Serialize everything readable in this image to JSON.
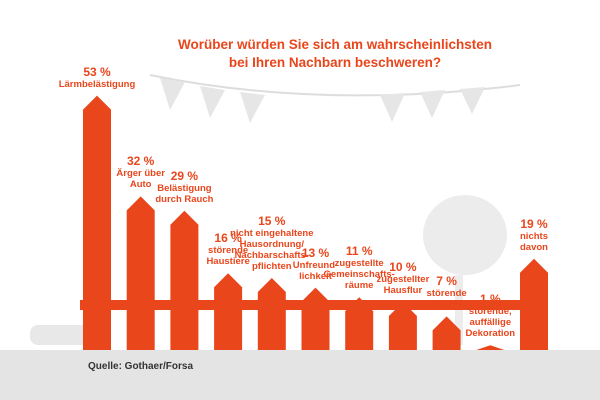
{
  "chart_data": {
    "type": "bar",
    "title": "Worüber würden Sie sich am wahrscheinlichsten\nbei Ihren Nachbarn beschweren?",
    "categories": [
      "Lärmbelästigung",
      "Ärger über\nAuto",
      "Belästigung\ndurch Rauch",
      "störende\nHaustiere",
      "nicht eingehaltene\nHausordnung/\nNachbarschafts-\npflichten",
      "Unfreund-\nlichkeit",
      "zugestellte\nGemeinschafts-\nräume",
      "zugestellter\nHausflur",
      "störende\nBesucher",
      "störende,\nauffällige\nDekoration",
      "nichts\ndavon"
    ],
    "values": [
      53,
      32,
      29,
      16,
      15,
      13,
      11,
      10,
      7,
      1,
      19
    ],
    "value_labels": [
      "53 %",
      "32 %",
      "29 %",
      "16 %",
      "15 %",
      "13 %",
      "11 %",
      "10 %",
      "7 %",
      "1 %",
      "19 %"
    ],
    "color": "#e9461c",
    "source": "Quelle: Gothaer/Forsa"
  }
}
